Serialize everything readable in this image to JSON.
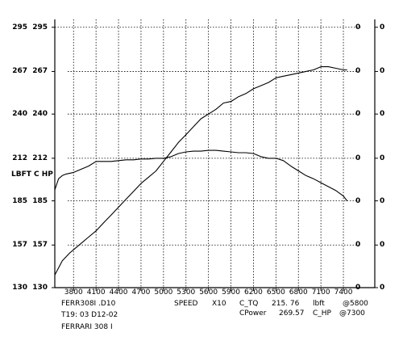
{
  "chart_data": {
    "type": "line",
    "x_ticks": [
      3800,
      4100,
      4400,
      4700,
      5000,
      5300,
      5600,
      5900,
      6200,
      6500,
      6800,
      7100,
      7400
    ],
    "x_range": [
      3550,
      7550
    ],
    "y_range": [
      130,
      300
    ],
    "y_ticks_outer": [
      "295",
      "267",
      "240",
      "212",
      "185",
      "157",
      "130"
    ],
    "y_ticks_inner": [
      "295",
      "267",
      "240",
      "212",
      "185",
      "157",
      "130"
    ],
    "y_unit_label": "LBFT C  HP",
    "right_ticks_a": [
      "0",
      "0",
      "0",
      "0",
      "0",
      "0",
      "0"
    ],
    "right_ticks_b": [
      "0",
      "0",
      "0",
      "0",
      "0",
      "0",
      "0"
    ],
    "y_right_tick_values": [
      295,
      267,
      240,
      212,
      185,
      157,
      130
    ],
    "grid": {
      "vertical": true,
      "horizontal": true,
      "style": "dotted"
    },
    "series": [
      {
        "key": "torque",
        "x": [
          3550,
          3600,
          3650,
          3700,
          3800,
          3900,
          4000,
          4100,
          4200,
          4300,
          4400,
          4500,
          4600,
          4700,
          4800,
          4900,
          5000,
          5100,
          5200,
          5300,
          5400,
          5500,
          5600,
          5700,
          5800,
          5900,
          6000,
          6100,
          6200,
          6300,
          6400,
          6500,
          6600,
          6700,
          6800,
          6900,
          7000,
          7100,
          7200,
          7300,
          7400,
          7450
        ],
        "y": [
          192,
          199,
          201,
          202,
          203,
          205,
          207,
          210,
          210,
          210,
          210.5,
          211,
          211,
          211.5,
          211.5,
          212,
          212,
          213,
          215,
          216,
          216.5,
          216.5,
          217,
          217,
          216.5,
          216,
          215.5,
          215.5,
          215,
          213,
          212,
          212,
          210.5,
          207,
          204,
          201,
          199,
          196.5,
          194,
          191.5,
          188,
          185
        ]
      },
      {
        "key": "power",
        "x": [
          3550,
          3650,
          3750,
          3800,
          3900,
          4000,
          4100,
          4200,
          4300,
          4400,
          4500,
          4600,
          4700,
          4800,
          4900,
          5000,
          5100,
          5200,
          5300,
          5400,
          5500,
          5600,
          5700,
          5800,
          5900,
          6000,
          6100,
          6200,
          6300,
          6400,
          6500,
          6600,
          6700,
          6800,
          6900,
          7000,
          7100,
          7200,
          7300,
          7400,
          7450
        ],
        "y": [
          138,
          147,
          152,
          154,
          158,
          162,
          166,
          171,
          176,
          181,
          186,
          191,
          196,
          200,
          204,
          210,
          216,
          222,
          227,
          232,
          237,
          240,
          243,
          247,
          248,
          251,
          253,
          256,
          258,
          260,
          263,
          264,
          265,
          266,
          267,
          268,
          270,
          270,
          269,
          268,
          268
        ]
      }
    ]
  },
  "footer": {
    "file_name": "FERR308I .D10",
    "test_id": "T19: 03 D12-02",
    "vehicle": "FERRARI 308  I",
    "speed_label": "SPEED",
    "speed_mult": "X10",
    "torque_label": "C_TQ",
    "torque_value": "215. 76",
    "torque_unit": "lbft",
    "torque_rpm": "@5800",
    "power_label": "CPower",
    "power_value": "269.57",
    "power_unit": "C_HP",
    "power_rpm": "@7300"
  }
}
